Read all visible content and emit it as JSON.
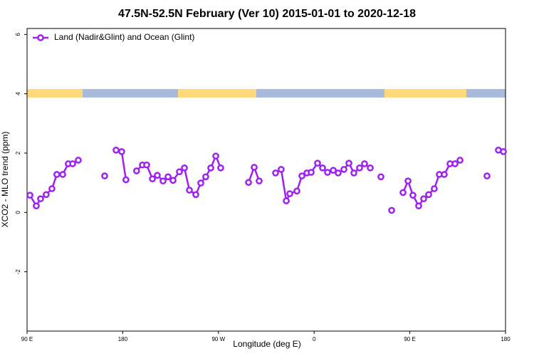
{
  "chart_data": {
    "type": "line",
    "title": "47.5N-52.5N February (Ver 10)   2015-01-01 to 2020-12-18",
    "xlabel": "Longitude (deg E)",
    "ylabel": "XCO2 - MLO trend (ppm)",
    "xlim": [
      90,
      540
    ],
    "xticks": [
      {
        "value": 90,
        "label": "90 E"
      },
      180,
      {
        "value": 270,
        "label": "90 W"
      },
      {
        "value": 360,
        "label": "0"
      },
      {
        "value": 450,
        "label": "90 E"
      },
      {
        "value": 540,
        "label": "180"
      }
    ],
    "ylim": [
      -4,
      6.2
    ],
    "yticks": [
      -2,
      0,
      2,
      4,
      6
    ],
    "legend": "top-left",
    "x": [
      92.7,
      98.7,
      102.7,
      108,
      113.4,
      118,
      123.5,
      128.8,
      132.9,
      138.2,
      null,
      163,
      null,
      173.7,
      179,
      183,
      null,
      193,
      198.5,
      202.5,
      207.9,
      212.5,
      217.9,
      222.6,
      227.3,
      233.3,
      238,
      242.7,
      248.7,
      253.4,
      258,
      262.8,
      267.5,
      272.1,
      null,
      298.3,
      303.6,
      308.3,
      null,
      323.7,
      329,
      333.8,
      337.1,
      343.8,
      348.5,
      353.2,
      357.2,
      363.2,
      367.9,
      372.6,
      378,
      382.6,
      388,
      392.7,
      397.4,
      402.7,
      407.4,
      412.8,
      null,
      422.8,
      null,
      432.9,
      null,
      443.6,
      448.3,
      452.9,
      458.3,
      463,
      467.7,
      473,
      477.7,
      482.4,
      487.8,
      492.5,
      497.2,
      null,
      522.6,
      null,
      533.3,
      538
    ],
    "series": [
      {
        "name": "Land (Nadir&Glint) and Ocean (Glint)",
        "color": "#a020f0",
        "values": [
          0.58,
          0.22,
          0.46,
          0.6,
          0.8,
          1.28,
          1.28,
          1.64,
          1.64,
          1.76,
          null,
          1.23,
          null,
          2.1,
          2.05,
          1.1,
          null,
          1.4,
          1.6,
          1.6,
          1.13,
          1.25,
          1.06,
          1.2,
          1.08,
          1.37,
          1.5,
          0.75,
          0.6,
          0.99,
          1.2,
          1.5,
          1.9,
          1.5,
          null,
          1.01,
          1.52,
          1.06,
          null,
          1.33,
          1.45,
          0.39,
          0.63,
          0.72,
          1.23,
          1.33,
          1.35,
          1.66,
          1.5,
          1.35,
          1.42,
          1.33,
          1.45,
          1.66,
          1.33,
          1.5,
          1.64,
          1.5,
          null,
          1.2,
          null,
          0.07,
          null,
          0.67,
          1.06,
          0.58,
          0.22,
          0.46,
          0.6,
          0.8,
          1.28,
          1.28,
          1.64,
          1.64,
          1.76,
          null,
          1.23,
          null,
          2.1,
          2.05
        ]
      }
    ]
  }
}
